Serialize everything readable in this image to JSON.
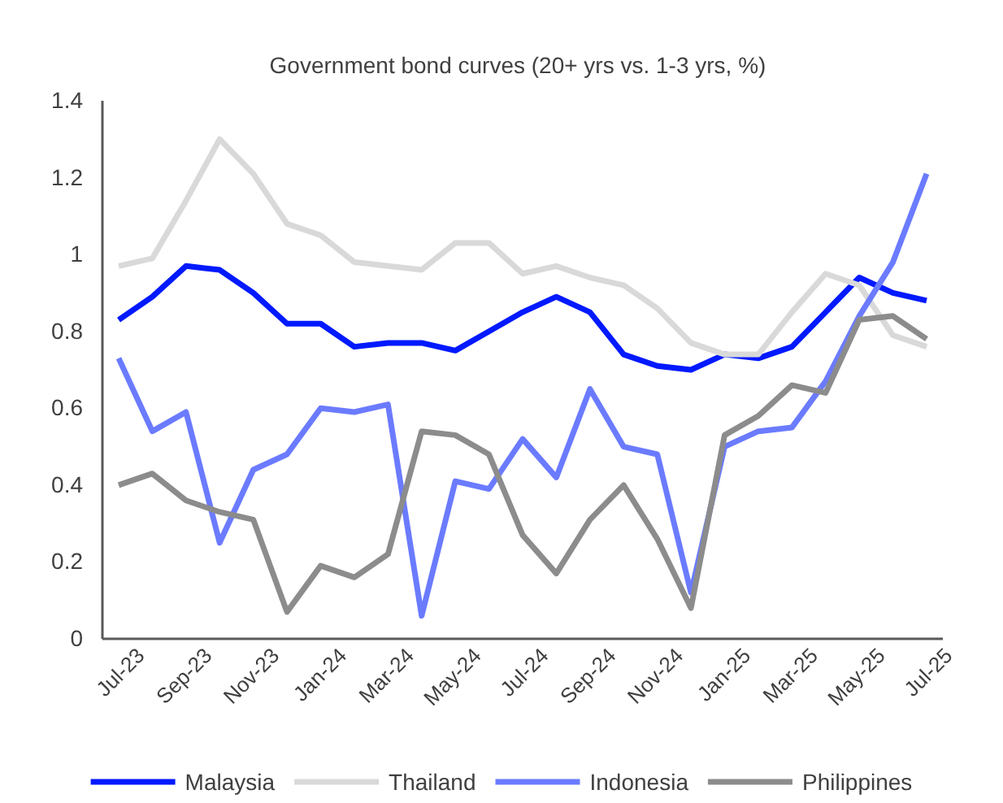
{
  "chart_data": {
    "type": "line",
    "title": "Government bond curves (20+ yrs vs. 1-3 yrs, %)",
    "categories": [
      "Jul-23",
      null,
      "Sep-23",
      null,
      "Nov-23",
      null,
      "Jan-24",
      null,
      "Mar-24",
      null,
      "May-24",
      null,
      "Jul-24",
      null,
      "Sep-24",
      null,
      "Nov-24",
      null,
      "Jan-25",
      null,
      "Mar-25",
      null,
      "May-25",
      null,
      "Jul-25"
    ],
    "series": [
      {
        "name": "Malaysia",
        "color": "#0019ff",
        "values": [
          0.83,
          0.89,
          0.97,
          0.96,
          0.9,
          0.82,
          0.82,
          0.76,
          0.77,
          0.77,
          0.75,
          0.8,
          0.85,
          0.89,
          0.85,
          0.74,
          0.71,
          0.7,
          0.74,
          0.73,
          0.76,
          0.85,
          0.94,
          0.9,
          0.88
        ]
      },
      {
        "name": "Thailand",
        "color": "#d9d9d9",
        "values": [
          0.97,
          0.99,
          1.14,
          1.3,
          1.21,
          1.08,
          1.05,
          0.98,
          0.97,
          0.96,
          1.03,
          1.03,
          0.95,
          0.97,
          0.94,
          0.92,
          0.86,
          0.77,
          0.74,
          0.74,
          0.85,
          0.95,
          0.92,
          0.79,
          0.76
        ]
      },
      {
        "name": "Indonesia",
        "color": "#6b7bff",
        "values": [
          0.73,
          0.54,
          0.59,
          0.25,
          0.44,
          0.48,
          0.6,
          0.59,
          0.61,
          0.06,
          0.41,
          0.39,
          0.52,
          0.42,
          0.65,
          0.5,
          0.48,
          0.12,
          0.5,
          0.54,
          0.55,
          0.67,
          0.84,
          0.98,
          1.21
        ]
      },
      {
        "name": "Philippines",
        "color": "#8c8c8c",
        "values": [
          0.4,
          0.43,
          0.36,
          0.33,
          0.31,
          0.07,
          0.19,
          0.16,
          0.22,
          0.54,
          0.53,
          0.48,
          0.27,
          0.17,
          0.31,
          0.4,
          0.26,
          0.08,
          0.53,
          0.58,
          0.66,
          0.64,
          0.83,
          0.84,
          0.78
        ]
      }
    ],
    "ylim": [
      0,
      1.4
    ],
    "yticks": [
      0,
      0.2,
      0.4,
      0.6,
      0.8,
      1,
      1.2,
      1.4
    ],
    "grid": false,
    "legend": "bottom",
    "line_style": "solid",
    "marker": "none"
  }
}
